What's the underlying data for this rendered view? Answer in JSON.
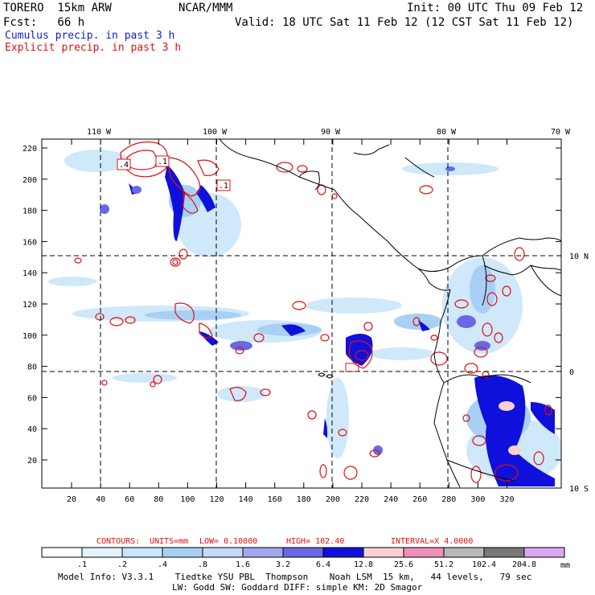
{
  "header": {
    "model": "TORERO  15km ARW",
    "org": "NCAR/MMM",
    "init": "Init: 00 UTC Thu 09 Feb 12",
    "fcst": "Fcst:   66 h",
    "valid": "Valid: 18 UTC Sat 11 Feb 12 (12 CST Sat 11 Feb 12)"
  },
  "legend": {
    "cumulus": "Cumulus precip. in past 3 h",
    "explicit": "Explicit precip. in past 3 h",
    "cumulus_color": "#1a1acc",
    "explicit_color": "#e01010"
  },
  "map": {
    "lon_labels": [
      "110 W",
      "100 W",
      "90 W",
      "80 W",
      "70 W"
    ],
    "lat_labels": [
      "10 N",
      "0",
      "10 S"
    ],
    "x_ticks": [
      "20",
      "40",
      "60",
      "80",
      "100",
      "120",
      "140",
      "160",
      "180",
      "200",
      "220",
      "240",
      "260",
      "280",
      "300",
      "320"
    ],
    "y_ticks": [
      "20",
      "40",
      "60",
      "80",
      "100",
      "120",
      "140",
      "160",
      "180",
      "200",
      "220"
    ],
    "contour_labels": [
      ".4",
      ".1",
      ".1"
    ]
  },
  "contours_line": {
    "prefix": "CONTOURS:",
    "units": "UNITS=mm",
    "low": "LOW= 0.10000",
    "high": "HIGH=  102.40",
    "interval": "INTERVAL=X  4.0000"
  },
  "colorbar": {
    "labels": [
      ".1",
      ".2",
      ".4",
      ".8",
      "1.6",
      "3.2",
      "6.4",
      "12.8",
      "25.6",
      "51.2",
      "102.4",
      "204.8"
    ],
    "unit": "mm",
    "colors": [
      "#ffffff",
      "#e4f2fc",
      "#cae6fa",
      "#a8d0f4",
      "#c8d8f8",
      "#a0a8f0",
      "#6868e6",
      "#1010dc",
      "#f8d0d4",
      "#f090b8",
      "#b8b8b8",
      "#787878",
      "#d8a8f4"
    ]
  },
  "footer": {
    "line1": "Model Info: V3.3.1    Tiedtke YSU PBL  Thompson    Noah LSM  15 km,   44 levels,   79 sec",
    "line2": "LW: Godd SW: Goddard DIFF: simple KM: 2D Smagor"
  }
}
